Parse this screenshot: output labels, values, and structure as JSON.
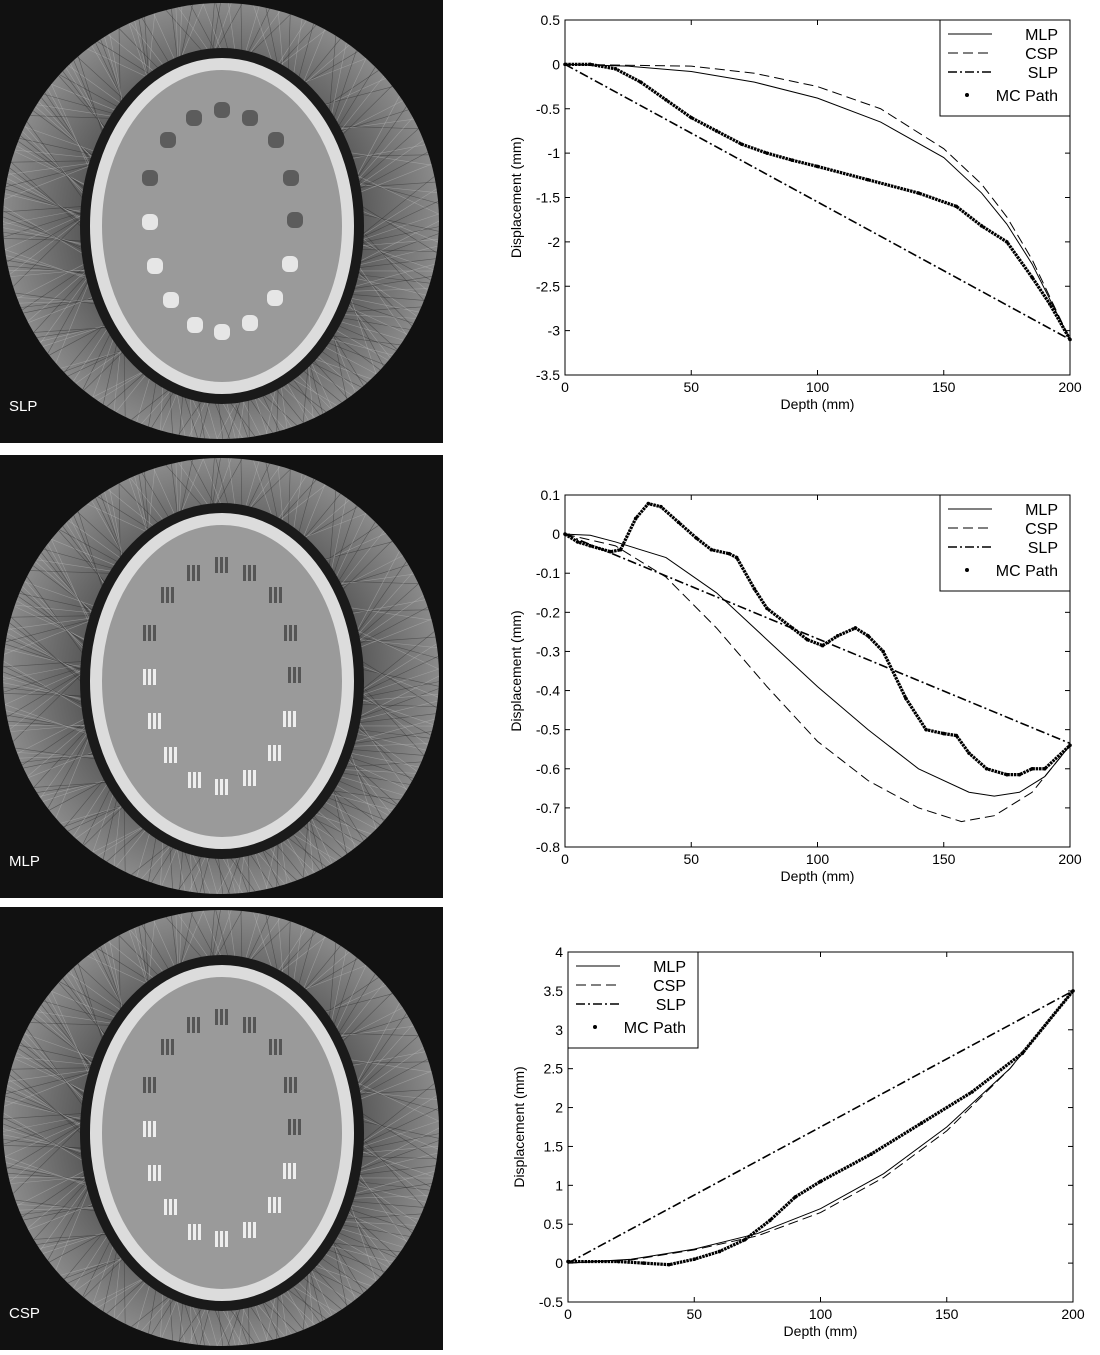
{
  "images": [
    {
      "label": "SLP",
      "pattern": "dots"
    },
    {
      "label": "MLP",
      "pattern": "bars"
    },
    {
      "label": "CSP",
      "pattern": "bars"
    }
  ],
  "chart_data": [
    {
      "type": "line",
      "xlabel": "Depth (mm)",
      "ylabel": "Displacement (mm)",
      "xlim": [
        0,
        200
      ],
      "ylim": [
        -3.5,
        0.5
      ],
      "xticks": [
        "0",
        "50",
        "100",
        "150",
        "200"
      ],
      "xtick_values": [
        0,
        50,
        100,
        150,
        200
      ],
      "yticks": [
        "0.5",
        "0",
        "-0.5",
        "-1",
        "-1.5",
        "-2",
        "-2.5",
        "-3",
        "-3.5"
      ],
      "ytick_values": [
        0.5,
        0,
        -0.5,
        -1,
        -1.5,
        -2,
        -2.5,
        -3,
        -3.5
      ],
      "legend_position": "top-right",
      "series": [
        {
          "name": "MLP",
          "style": "solid",
          "points": [
            [
              0,
              0
            ],
            [
              25,
              -0.02
            ],
            [
              50,
              -0.08
            ],
            [
              75,
              -0.2
            ],
            [
              100,
              -0.38
            ],
            [
              125,
              -0.65
            ],
            [
              150,
              -1.05
            ],
            [
              165,
              -1.45
            ],
            [
              175,
              -1.8
            ],
            [
              185,
              -2.25
            ],
            [
              200,
              -3.1
            ]
          ]
        },
        {
          "name": "CSP",
          "style": "dashed",
          "points": [
            [
              0,
              0
            ],
            [
              50,
              -0.02
            ],
            [
              75,
              -0.1
            ],
            [
              100,
              -0.25
            ],
            [
              125,
              -0.5
            ],
            [
              150,
              -0.95
            ],
            [
              165,
              -1.35
            ],
            [
              175,
              -1.72
            ],
            [
              185,
              -2.2
            ],
            [
              200,
              -3.1
            ]
          ]
        },
        {
          "name": "SLP",
          "style": "dashdot",
          "points": [
            [
              0,
              0
            ],
            [
              200,
              -3.1
            ]
          ]
        },
        {
          "name": "MC Path",
          "style": "dots",
          "points": [
            [
              0,
              0
            ],
            [
              10,
              0
            ],
            [
              20,
              -0.05
            ],
            [
              30,
              -0.2
            ],
            [
              40,
              -0.4
            ],
            [
              50,
              -0.6
            ],
            [
              60,
              -0.75
            ],
            [
              70,
              -0.9
            ],
            [
              80,
              -1.0
            ],
            [
              90,
              -1.08
            ],
            [
              100,
              -1.15
            ],
            [
              120,
              -1.3
            ],
            [
              140,
              -1.45
            ],
            [
              155,
              -1.6
            ],
            [
              165,
              -1.82
            ],
            [
              175,
              -2.0
            ],
            [
              185,
              -2.4
            ],
            [
              192,
              -2.7
            ],
            [
              200,
              -3.1
            ]
          ]
        }
      ]
    },
    {
      "type": "line",
      "xlabel": "Depth (mm)",
      "ylabel": "Displacement (mm)",
      "xlim": [
        0,
        200
      ],
      "ylim": [
        -0.8,
        0.1
      ],
      "xticks": [
        "0",
        "50",
        "100",
        "150",
        "200"
      ],
      "xtick_values": [
        0,
        50,
        100,
        150,
        200
      ],
      "yticks": [
        "0.1",
        "0",
        "-0.1",
        "-0.2",
        "-0.3",
        "-0.4",
        "-0.5",
        "-0.6",
        "-0.7",
        "-0.8"
      ],
      "ytick_values": [
        0.1,
        0,
        -0.1,
        -0.2,
        -0.3,
        -0.4,
        -0.5,
        -0.6,
        -0.7,
        -0.8
      ],
      "legend_position": "top-right",
      "series": [
        {
          "name": "MLP",
          "style": "solid",
          "points": [
            [
              0,
              0
            ],
            [
              10,
              -0.003
            ],
            [
              20,
              -0.02
            ],
            [
              40,
              -0.06
            ],
            [
              60,
              -0.15
            ],
            [
              80,
              -0.27
            ],
            [
              100,
              -0.39
            ],
            [
              120,
              -0.5
            ],
            [
              140,
              -0.6
            ],
            [
              160,
              -0.66
            ],
            [
              170,
              -0.67
            ],
            [
              180,
              -0.66
            ],
            [
              190,
              -0.62
            ],
            [
              200,
              -0.54
            ]
          ]
        },
        {
          "name": "CSP",
          "style": "dashed",
          "points": [
            [
              0,
              0
            ],
            [
              20,
              -0.03
            ],
            [
              40,
              -0.11
            ],
            [
              60,
              -0.24
            ],
            [
              80,
              -0.39
            ],
            [
              100,
              -0.53
            ],
            [
              120,
              -0.63
            ],
            [
              140,
              -0.7
            ],
            [
              157,
              -0.735
            ],
            [
              170,
              -0.72
            ],
            [
              185,
              -0.66
            ],
            [
              200,
              -0.54
            ]
          ]
        },
        {
          "name": "SLP",
          "style": "dashdot",
          "points": [
            [
              0,
              0
            ],
            [
              200,
              -0.535
            ]
          ]
        },
        {
          "name": "MC Path",
          "style": "dots",
          "points": [
            [
              0,
              0
            ],
            [
              5,
              -0.02
            ],
            [
              10,
              -0.03
            ],
            [
              18,
              -0.045
            ],
            [
              22,
              -0.04
            ],
            [
              28,
              0.04
            ],
            [
              33,
              0.078
            ],
            [
              38,
              0.07
            ],
            [
              45,
              0.03
            ],
            [
              52,
              -0.01
            ],
            [
              58,
              -0.04
            ],
            [
              65,
              -0.05
            ],
            [
              68,
              -0.06
            ],
            [
              75,
              -0.14
            ],
            [
              80,
              -0.19
            ],
            [
              90,
              -0.24
            ],
            [
              96,
              -0.27
            ],
            [
              102,
              -0.285
            ],
            [
              108,
              -0.26
            ],
            [
              115,
              -0.24
            ],
            [
              120,
              -0.26
            ],
            [
              126,
              -0.3
            ],
            [
              135,
              -0.42
            ],
            [
              143,
              -0.5
            ],
            [
              150,
              -0.51
            ],
            [
              155,
              -0.515
            ],
            [
              160,
              -0.56
            ],
            [
              167,
              -0.6
            ],
            [
              175,
              -0.615
            ],
            [
              180,
              -0.615
            ],
            [
              185,
              -0.6
            ],
            [
              190,
              -0.6
            ],
            [
              200,
              -0.54
            ]
          ]
        }
      ]
    },
    {
      "type": "line",
      "xlabel": "Depth (mm)",
      "ylabel": "Displacement (mm)",
      "xlim": [
        0,
        200
      ],
      "ylim": [
        -0.5,
        4
      ],
      "xticks": [
        "0",
        "50",
        "100",
        "150",
        "200"
      ],
      "xtick_values": [
        0,
        50,
        100,
        150,
        200
      ],
      "yticks": [
        "4",
        "3.5",
        "3",
        "2.5",
        "2",
        "1.5",
        "1",
        "0.5",
        "0",
        "-0.5"
      ],
      "ytick_values": [
        4,
        3.5,
        3,
        2.5,
        2,
        1.5,
        1,
        0.5,
        0,
        -0.5
      ],
      "legend_position": "top-left",
      "series": [
        {
          "name": "MLP",
          "style": "solid",
          "points": [
            [
              0,
              0
            ],
            [
              25,
              0.05
            ],
            [
              50,
              0.18
            ],
            [
              75,
              0.38
            ],
            [
              100,
              0.7
            ],
            [
              125,
              1.15
            ],
            [
              150,
              1.75
            ],
            [
              175,
              2.5
            ],
            [
              200,
              3.5
            ]
          ]
        },
        {
          "name": "CSP",
          "style": "dashed",
          "points": [
            [
              0,
              0
            ],
            [
              25,
              0.04
            ],
            [
              50,
              0.17
            ],
            [
              75,
              0.35
            ],
            [
              100,
              0.65
            ],
            [
              125,
              1.1
            ],
            [
              150,
              1.7
            ],
            [
              175,
              2.5
            ],
            [
              200,
              3.5
            ]
          ]
        },
        {
          "name": "SLP",
          "style": "dashdot",
          "points": [
            [
              0,
              0
            ],
            [
              200,
              3.5
            ]
          ]
        },
        {
          "name": "MC Path",
          "style": "dots",
          "points": [
            [
              0,
              0.02
            ],
            [
              20,
              0.02
            ],
            [
              30,
              0
            ],
            [
              40,
              -0.02
            ],
            [
              50,
              0.05
            ],
            [
              60,
              0.15
            ],
            [
              70,
              0.3
            ],
            [
              80,
              0.55
            ],
            [
              90,
              0.85
            ],
            [
              100,
              1.05
            ],
            [
              120,
              1.4
            ],
            [
              140,
              1.8
            ],
            [
              160,
              2.2
            ],
            [
              180,
              2.7
            ],
            [
              200,
              3.5
            ]
          ]
        }
      ]
    }
  ]
}
